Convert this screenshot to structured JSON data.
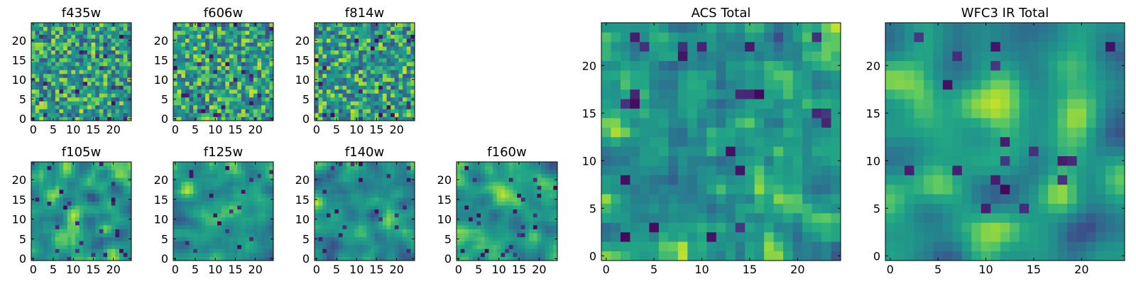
{
  "chart_data": [
    {
      "type": "heatmap",
      "title": "f435w",
      "grid": "25x25",
      "xlim": [
        0,
        24
      ],
      "ylim": [
        0,
        24
      ],
      "xticks": [
        "0",
        "5",
        "10",
        "15",
        "20"
      ],
      "yticks": [
        "0",
        "5",
        "10",
        "15",
        "20"
      ],
      "texture": "noisy",
      "colormap": "viridis",
      "seed": 11
    },
    {
      "type": "heatmap",
      "title": "f606w",
      "grid": "25x25",
      "xlim": [
        0,
        24
      ],
      "ylim": [
        0,
        24
      ],
      "xticks": [
        "0",
        "5",
        "10",
        "15",
        "20"
      ],
      "yticks": [
        "0",
        "5",
        "10",
        "15",
        "20"
      ],
      "texture": "noisy",
      "colormap": "viridis",
      "seed": 23
    },
    {
      "type": "heatmap",
      "title": "f814w",
      "grid": "25x25",
      "xlim": [
        0,
        24
      ],
      "ylim": [
        0,
        24
      ],
      "xticks": [
        "0",
        "5",
        "10",
        "15",
        "20"
      ],
      "yticks": [
        "0",
        "5",
        "10",
        "15",
        "20"
      ],
      "texture": "noisy",
      "colormap": "viridis",
      "seed": 37
    },
    {
      "type": "heatmap",
      "title": "f105w",
      "grid": "25x25",
      "xlim": [
        0,
        24
      ],
      "ylim": [
        0,
        24
      ],
      "xticks": [
        "0",
        "5",
        "10",
        "15",
        "20"
      ],
      "yticks": [
        "0",
        "5",
        "10",
        "15",
        "20"
      ],
      "texture": "smooth",
      "colormap": "viridis",
      "seed": 41
    },
    {
      "type": "heatmap",
      "title": "f125w",
      "grid": "25x25",
      "xlim": [
        0,
        24
      ],
      "ylim": [
        0,
        24
      ],
      "xticks": [
        "0",
        "5",
        "10",
        "15",
        "20"
      ],
      "yticks": [
        "0",
        "5",
        "10",
        "15",
        "20"
      ],
      "texture": "smooth",
      "colormap": "viridis",
      "seed": 53
    },
    {
      "type": "heatmap",
      "title": "f140w",
      "grid": "25x25",
      "xlim": [
        0,
        24
      ],
      "ylim": [
        0,
        24
      ],
      "xticks": [
        "0",
        "5",
        "10",
        "15",
        "20"
      ],
      "yticks": [
        "0",
        "5",
        "10",
        "15",
        "20"
      ],
      "texture": "smooth",
      "colormap": "viridis",
      "seed": 67
    },
    {
      "type": "heatmap",
      "title": "f160w",
      "grid": "25x25",
      "xlim": [
        0,
        24
      ],
      "ylim": [
        0,
        24
      ],
      "xticks": [
        "0",
        "5",
        "10",
        "15",
        "20"
      ],
      "yticks": [
        "0",
        "5",
        "10",
        "15",
        "20"
      ],
      "texture": "smooth",
      "colormap": "viridis",
      "seed": 79
    },
    {
      "type": "heatmap",
      "title": "ACS Total",
      "grid": "25x25",
      "xlim": [
        0,
        24
      ],
      "ylim": [
        0,
        24
      ],
      "xticks": [
        "0",
        "5",
        "10",
        "15",
        "20"
      ],
      "yticks": [
        "0",
        "5",
        "10",
        "15",
        "20"
      ],
      "texture": "medium",
      "colormap": "viridis",
      "seed": 83
    },
    {
      "type": "heatmap",
      "title": "WFC3 IR Total",
      "grid": "25x25",
      "xlim": [
        0,
        24
      ],
      "ylim": [
        0,
        24
      ],
      "xticks": [
        "0",
        "5",
        "10",
        "15",
        "20"
      ],
      "yticks": [
        "0",
        "5",
        "10",
        "15",
        "20"
      ],
      "texture": "smooth-large",
      "colormap": "viridis",
      "seed": 97
    }
  ],
  "colors": {
    "axis": "#000000",
    "background": "#ffffff"
  }
}
